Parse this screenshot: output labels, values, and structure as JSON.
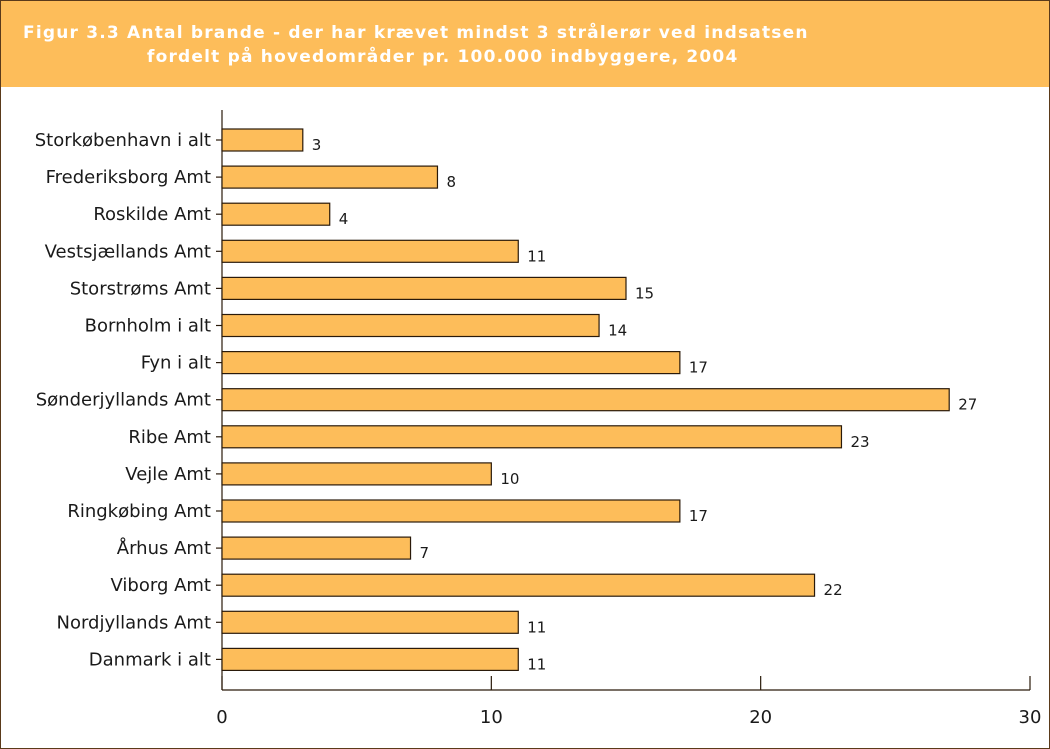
{
  "header": {
    "title_line1": "Figur 3.3 Antal brande - der har krævet mindst 3 strålerør ved indsatsen",
    "title_line2": "fordelt på hovedområder pr. 100.000 indbyggere, 2004"
  },
  "colors": {
    "title_band": "#fdbd5a",
    "bar_fill": "#fdbd5a",
    "bar_stroke": "#2a1a0a",
    "axis": "#2a1a0a"
  },
  "chart_data": {
    "type": "bar",
    "orientation": "horizontal",
    "title": "Figur 3.3 Antal brande - der har krævet mindst 3 strålerør ved indsatsen fordelt på hovedområder pr. 100.000 indbyggere, 2004",
    "categories": [
      "Storkøbenhavn i alt",
      "Frederiksborg Amt",
      "Roskilde Amt",
      "Vestsjællands Amt",
      "Storstrøms Amt",
      "Bornholm i alt",
      "Fyn i alt",
      "Sønderjyllands Amt",
      "Ribe Amt",
      "Vejle Amt",
      "Ringkøbing Amt",
      "Århus Amt",
      "Viborg Amt",
      "Nordjyllands Amt",
      "Danmark i alt"
    ],
    "values": [
      3,
      8,
      4,
      11,
      15,
      14,
      17,
      27,
      23,
      10,
      17,
      7,
      22,
      11,
      11
    ],
    "xlim": [
      0,
      30
    ],
    "xticks": [
      0,
      10,
      20,
      30
    ],
    "grid": false,
    "xlabel": "",
    "ylabel": ""
  }
}
